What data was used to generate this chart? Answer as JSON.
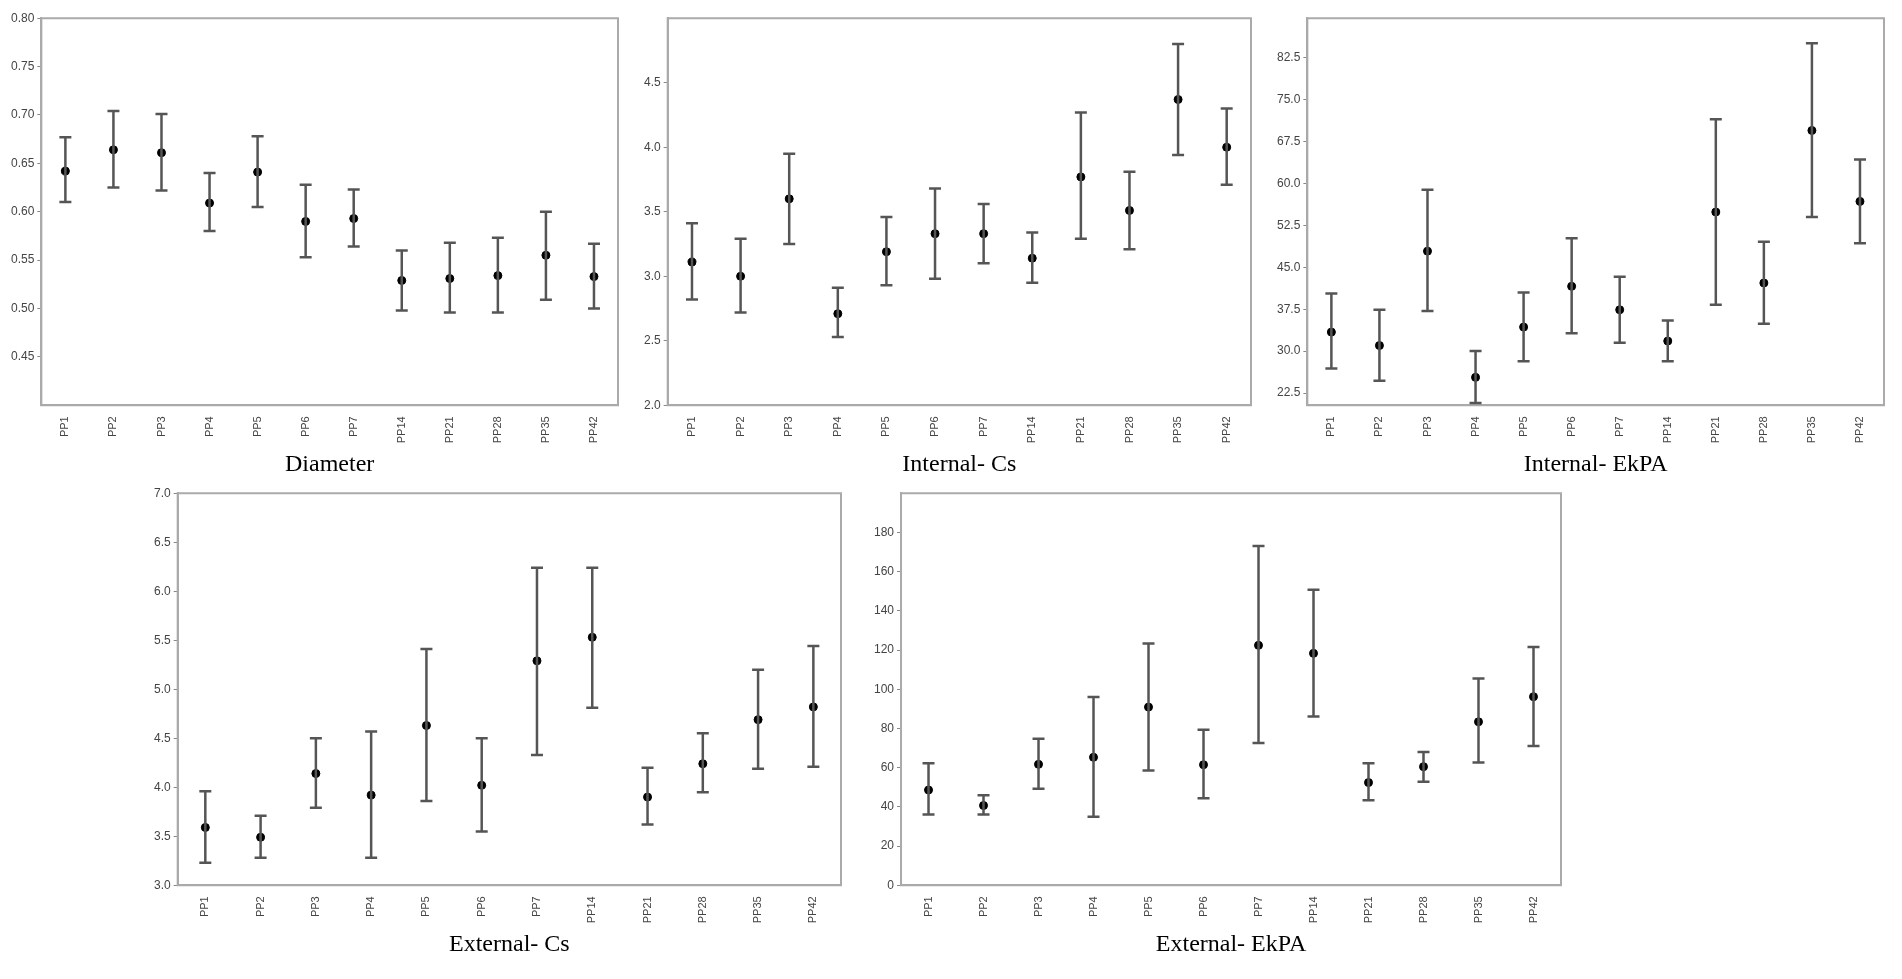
{
  "chart_data": [
    {
      "type": "scatter",
      "xlabel": "Diameter",
      "categories": [
        "PP1",
        "PP2",
        "PP3",
        "PP4",
        "PP5",
        "PP6",
        "PP7",
        "PP14",
        "PP21",
        "PP28",
        "PP35",
        "PP42"
      ],
      "color": "#000000",
      "marker": "circle",
      "values": [
        0.642,
        0.664,
        0.661,
        0.609,
        0.641,
        0.59,
        0.593,
        0.529,
        0.531,
        0.534,
        0.555,
        0.533
      ],
      "errors": [
        [
          0.61,
          0.677
        ],
        [
          0.625,
          0.704
        ],
        [
          0.622,
          0.701
        ],
        [
          0.58,
          0.64
        ],
        [
          0.605,
          0.678
        ],
        [
          0.553,
          0.628
        ],
        [
          0.564,
          0.623
        ],
        [
          0.498,
          0.56
        ],
        [
          0.496,
          0.568
        ],
        [
          0.496,
          0.573
        ],
        [
          0.509,
          0.6
        ],
        [
          0.5,
          0.567
        ]
      ],
      "ylim": [
        0.4,
        0.8
      ],
      "yticks": [
        {
          "value": 0.45,
          "label": "0.45"
        },
        {
          "value": 0.5,
          "label": "0.50"
        },
        {
          "value": 0.55,
          "label": "0.55"
        },
        {
          "value": 0.6,
          "label": "0.60"
        },
        {
          "value": 0.65,
          "label": "0.65"
        },
        {
          "value": 0.7,
          "label": "0.70"
        },
        {
          "value": 0.75,
          "label": "0.75"
        },
        {
          "value": 0.8,
          "label": "0.80"
        }
      ]
    },
    {
      "type": "scatter",
      "xlabel": "Internal- Cs",
      "categories": [
        "PP1",
        "PP2",
        "PP3",
        "PP4",
        "PP5",
        "PP6",
        "PP7",
        "PP14",
        "PP21",
        "PP28",
        "PP35",
        "PP42"
      ],
      "color": "#000000",
      "marker": "circle",
      "values": [
        3.11,
        3.0,
        3.6,
        2.71,
        3.19,
        3.33,
        3.33,
        3.14,
        3.77,
        3.51,
        4.37,
        4.0
      ],
      "errors": [
        [
          2.82,
          3.41
        ],
        [
          2.72,
          3.29
        ],
        [
          3.25,
          3.95
        ],
        [
          2.53,
          2.91
        ],
        [
          2.93,
          3.46
        ],
        [
          2.98,
          3.68
        ],
        [
          3.1,
          3.56
        ],
        [
          2.95,
          3.34
        ],
        [
          3.29,
          4.27
        ],
        [
          3.21,
          3.81
        ],
        [
          3.94,
          4.8
        ],
        [
          3.71,
          4.3
        ]
      ],
      "ylim": [
        2.0,
        5.0
      ],
      "yticks": [
        {
          "value": 2,
          "label": "2.0"
        },
        {
          "value": 2.5,
          "label": "2.5"
        },
        {
          "value": 3,
          "label": "3.0"
        },
        {
          "value": 3.5,
          "label": "3.5"
        },
        {
          "value": 4,
          "label": "4.0"
        },
        {
          "value": 4.5,
          "label": "4.5"
        }
      ]
    },
    {
      "type": "scatter",
      "xlabel": "Internal- EkPA",
      "categories": [
        "PP1",
        "PP2",
        "PP3",
        "PP4",
        "PP5",
        "PP6",
        "PP7",
        "PP14",
        "PP21",
        "PP28",
        "PP35",
        "PP42"
      ],
      "color": "#000000",
      "marker": "circle",
      "values": [
        33.4,
        31.0,
        47.9,
        25.3,
        34.3,
        41.6,
        37.4,
        31.8,
        54.9,
        42.2,
        69.5,
        56.8
      ],
      "errors": [
        [
          26.9,
          40.3
        ],
        [
          24.7,
          37.4
        ],
        [
          37.2,
          58.9
        ],
        [
          20.7,
          30.0
        ],
        [
          28.2,
          40.5
        ],
        [
          33.2,
          50.2
        ],
        [
          31.5,
          43.3
        ],
        [
          28.2,
          35.5
        ],
        [
          38.3,
          71.5
        ],
        [
          34.9,
          49.6
        ],
        [
          54.0,
          85.1
        ],
        [
          49.3,
          64.3
        ]
      ],
      "ylim": [
        20.3,
        89.6
      ],
      "yticks": [
        22.5,
        {
          "value": 30,
          "label": "30.0"
        },
        37.5,
        {
          "value": 45,
          "label": "45.0"
        },
        52.5,
        {
          "value": 60,
          "label": "60.0"
        },
        67.5,
        {
          "value": 75,
          "label": "75.0"
        },
        82.5
      ]
    },
    {
      "type": "scatter",
      "xlabel": "External- Cs",
      "categories": [
        "PP1",
        "PP2",
        "PP3",
        "PP4",
        "PP5",
        "PP6",
        "PP7",
        "PP14",
        "PP21",
        "PP28",
        "PP35",
        "PP42"
      ],
      "color": "#000000",
      "marker": "circle",
      "values": [
        3.59,
        3.49,
        4.14,
        3.92,
        4.63,
        4.02,
        5.29,
        5.53,
        3.9,
        4.24,
        4.69,
        4.82
      ],
      "errors": [
        [
          3.23,
          3.96
        ],
        [
          3.28,
          3.71
        ],
        [
          3.79,
          4.5
        ],
        [
          3.28,
          4.57
        ],
        [
          3.86,
          5.41
        ],
        [
          3.55,
          4.5
        ],
        [
          4.33,
          6.24
        ],
        [
          4.81,
          6.24
        ],
        [
          3.62,
          4.2
        ],
        [
          3.95,
          4.55
        ],
        [
          4.19,
          5.2
        ],
        [
          4.21,
          5.44
        ]
      ],
      "ylim": [
        3.0,
        7.0
      ],
      "yticks": [
        {
          "value": 3,
          "label": "3.0"
        },
        3.5,
        {
          "value": 4,
          "label": "4.0"
        },
        4.5,
        {
          "value": 5,
          "label": "5.0"
        },
        5.5,
        {
          "value": 6,
          "label": "6.0"
        },
        6.5,
        {
          "value": 7,
          "label": "7.0"
        }
      ]
    },
    {
      "type": "scatter",
      "xlabel": "External- EkPA",
      "categories": [
        "PP1",
        "PP2",
        "PP3",
        "PP4",
        "PP5",
        "PP6",
        "PP7",
        "PP14",
        "PP21",
        "PP28",
        "PP35",
        "PP42"
      ],
      "color": "#000000",
      "marker": "circle",
      "values": [
        48.6,
        40.7,
        61.7,
        65.3,
        90.9,
        61.5,
        122.4,
        118.3,
        52.4,
        60.5,
        83.4,
        96.2
      ],
      "errors": [
        [
          36.1,
          62.2
        ],
        [
          36.1,
          45.9
        ],
        [
          49.2,
          74.7
        ],
        [
          35.0,
          96.0
        ],
        [
          58.6,
          123.3
        ],
        [
          44.4,
          79.3
        ],
        [
          72.6,
          173.1
        ],
        [
          86.1,
          150.8
        ],
        [
          43.4,
          62.2
        ],
        [
          52.8,
          68.0
        ],
        [
          62.6,
          105.5
        ],
        [
          71.1,
          121.6
        ]
      ],
      "ylim": [
        0,
        200
      ],
      "yticks": [
        0,
        20,
        40,
        60,
        80,
        100,
        120,
        140,
        160,
        180
      ]
    }
  ]
}
